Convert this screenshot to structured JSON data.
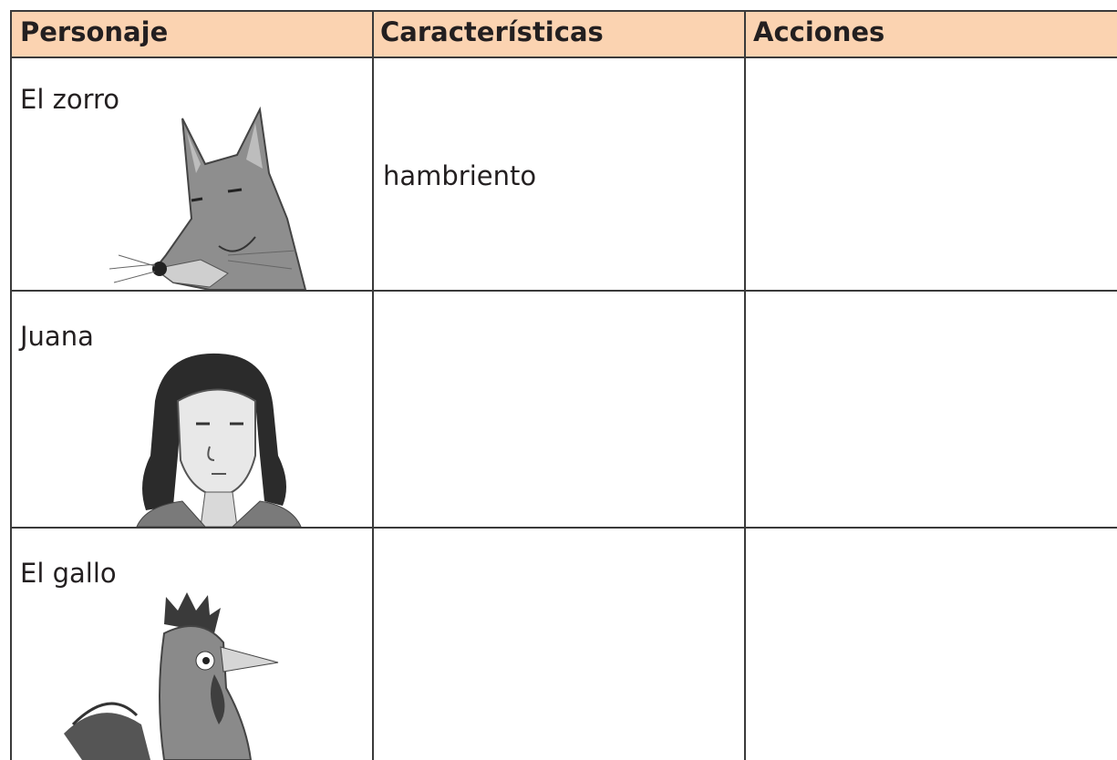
{
  "table": {
    "headers": [
      "Personaje",
      "Características",
      "Acciones"
    ],
    "rows": [
      {
        "personaje": "El zorro",
        "caracteristicas": "hambriento"
      },
      {
        "personaje": "Juana"
      },
      {
        "personaje": "El gallo"
      }
    ]
  }
}
